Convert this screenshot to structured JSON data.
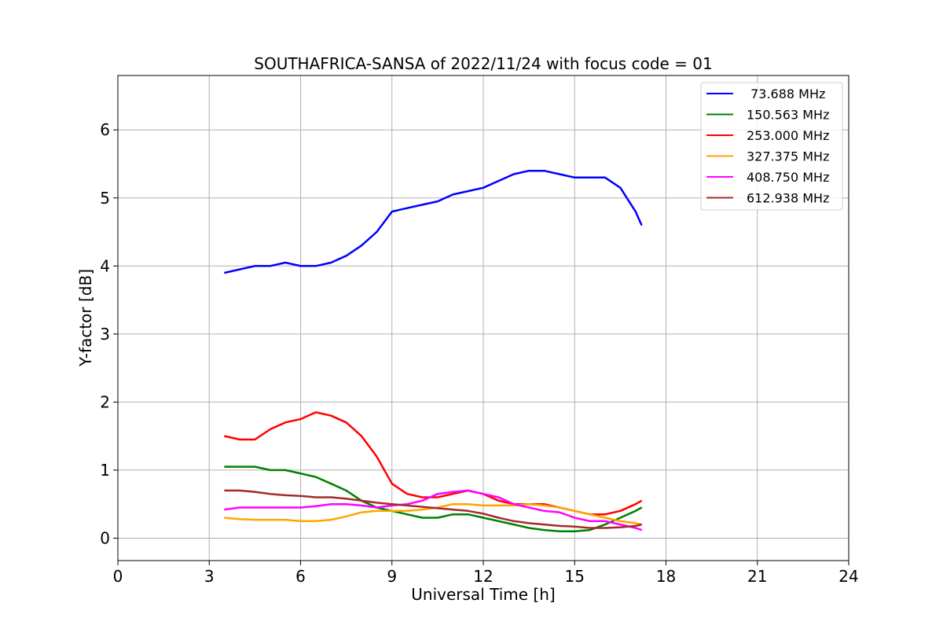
{
  "chart_data": {
    "type": "line",
    "title": "SOUTHAFRICA-SANSA of 2022/11/24 with focus code = 01",
    "xlabel": "Universal Time [h]",
    "ylabel": "Y-factor [dB]",
    "xlim": [
      0,
      24
    ],
    "ylim": [
      -0.33,
      6.8
    ],
    "xticks": [
      0,
      3,
      6,
      9,
      12,
      15,
      18,
      21,
      24
    ],
    "yticks": [
      0,
      1,
      2,
      3,
      4,
      5,
      6
    ],
    "grid": true,
    "legend_position": "top-right",
    "series": [
      {
        "name": " 73.688 MHz",
        "color": "#0000ff",
        "x": [
          3.5,
          4.0,
          4.5,
          5.0,
          5.5,
          6.0,
          6.5,
          7.0,
          7.5,
          8.0,
          8.5,
          9.0,
          9.5,
          10.0,
          10.5,
          11.0,
          11.5,
          12.0,
          12.5,
          13.0,
          13.5,
          14.0,
          14.5,
          15.0,
          15.5,
          16.0,
          16.5,
          17.0,
          17.2
        ],
        "values": [
          3.9,
          3.95,
          4.0,
          4.0,
          4.05,
          4.0,
          4.0,
          4.05,
          4.15,
          4.3,
          4.5,
          4.8,
          4.85,
          4.9,
          4.95,
          5.05,
          5.1,
          5.15,
          5.25,
          5.35,
          5.4,
          5.4,
          5.35,
          5.3,
          5.3,
          5.3,
          5.15,
          4.8,
          4.6
        ]
      },
      {
        "name": "150.563 MHz",
        "color": "#008000",
        "x": [
          3.5,
          4.0,
          4.5,
          5.0,
          5.5,
          6.0,
          6.5,
          7.0,
          7.5,
          8.0,
          8.5,
          9.0,
          9.5,
          10.0,
          10.5,
          11.0,
          11.5,
          12.0,
          12.5,
          13.0,
          13.5,
          14.0,
          14.5,
          15.0,
          15.5,
          16.0,
          16.5,
          17.0,
          17.2
        ],
        "values": [
          1.05,
          1.05,
          1.05,
          1.0,
          1.0,
          0.95,
          0.9,
          0.8,
          0.7,
          0.55,
          0.45,
          0.4,
          0.35,
          0.3,
          0.3,
          0.35,
          0.35,
          0.3,
          0.25,
          0.2,
          0.15,
          0.12,
          0.1,
          0.1,
          0.12,
          0.2,
          0.3,
          0.4,
          0.45
        ]
      },
      {
        "name": "253.000 MHz",
        "color": "#ff0000",
        "x": [
          3.5,
          4.0,
          4.5,
          5.0,
          5.5,
          6.0,
          6.5,
          7.0,
          7.5,
          8.0,
          8.5,
          9.0,
          9.5,
          10.0,
          10.5,
          11.0,
          11.5,
          12.0,
          12.5,
          13.0,
          13.5,
          14.0,
          14.5,
          15.0,
          15.5,
          16.0,
          16.5,
          17.0,
          17.2
        ],
        "values": [
          1.5,
          1.45,
          1.45,
          1.6,
          1.7,
          1.75,
          1.85,
          1.8,
          1.7,
          1.5,
          1.2,
          0.8,
          0.65,
          0.6,
          0.6,
          0.65,
          0.7,
          0.65,
          0.55,
          0.5,
          0.5,
          0.5,
          0.45,
          0.4,
          0.35,
          0.35,
          0.4,
          0.5,
          0.55
        ]
      },
      {
        "name": "327.375 MHz",
        "color": "#ffa500",
        "x": [
          3.5,
          4.0,
          4.5,
          5.0,
          5.5,
          6.0,
          6.5,
          7.0,
          7.5,
          8.0,
          8.5,
          9.0,
          9.5,
          10.0,
          10.5,
          11.0,
          11.5,
          12.0,
          12.5,
          13.0,
          13.5,
          14.0,
          14.5,
          15.0,
          15.5,
          16.0,
          16.5,
          17.0,
          17.2
        ],
        "values": [
          0.3,
          0.28,
          0.27,
          0.27,
          0.27,
          0.25,
          0.25,
          0.27,
          0.32,
          0.38,
          0.4,
          0.4,
          0.4,
          0.42,
          0.45,
          0.5,
          0.5,
          0.48,
          0.48,
          0.48,
          0.5,
          0.48,
          0.45,
          0.4,
          0.35,
          0.3,
          0.25,
          0.22,
          0.2
        ]
      },
      {
        "name": "408.750 MHz",
        "color": "#ff00ff",
        "x": [
          3.5,
          4.0,
          4.5,
          5.0,
          5.5,
          6.0,
          6.5,
          7.0,
          7.5,
          8.0,
          8.5,
          9.0,
          9.5,
          10.0,
          10.5,
          11.0,
          11.5,
          12.0,
          12.5,
          13.0,
          13.5,
          14.0,
          14.5,
          15.0,
          15.5,
          16.0,
          16.5,
          17.0,
          17.2
        ],
        "values": [
          0.42,
          0.45,
          0.45,
          0.45,
          0.45,
          0.45,
          0.47,
          0.5,
          0.5,
          0.48,
          0.45,
          0.48,
          0.5,
          0.55,
          0.65,
          0.68,
          0.7,
          0.65,
          0.6,
          0.5,
          0.45,
          0.4,
          0.38,
          0.3,
          0.25,
          0.25,
          0.2,
          0.15,
          0.12
        ]
      },
      {
        "name": "612.938 MHz",
        "color": "#a52a2a",
        "x": [
          3.5,
          4.0,
          4.5,
          5.0,
          5.5,
          6.0,
          6.5,
          7.0,
          7.5,
          8.0,
          8.5,
          9.0,
          9.5,
          10.0,
          10.5,
          11.0,
          11.5,
          12.0,
          12.5,
          13.0,
          13.5,
          14.0,
          14.5,
          15.0,
          15.5,
          16.0,
          16.5,
          17.0,
          17.2
        ],
        "values": [
          0.7,
          0.7,
          0.68,
          0.65,
          0.63,
          0.62,
          0.6,
          0.6,
          0.58,
          0.55,
          0.52,
          0.5,
          0.48,
          0.46,
          0.44,
          0.42,
          0.4,
          0.36,
          0.3,
          0.25,
          0.22,
          0.2,
          0.18,
          0.17,
          0.15,
          0.15,
          0.16,
          0.18,
          0.2
        ]
      }
    ]
  }
}
